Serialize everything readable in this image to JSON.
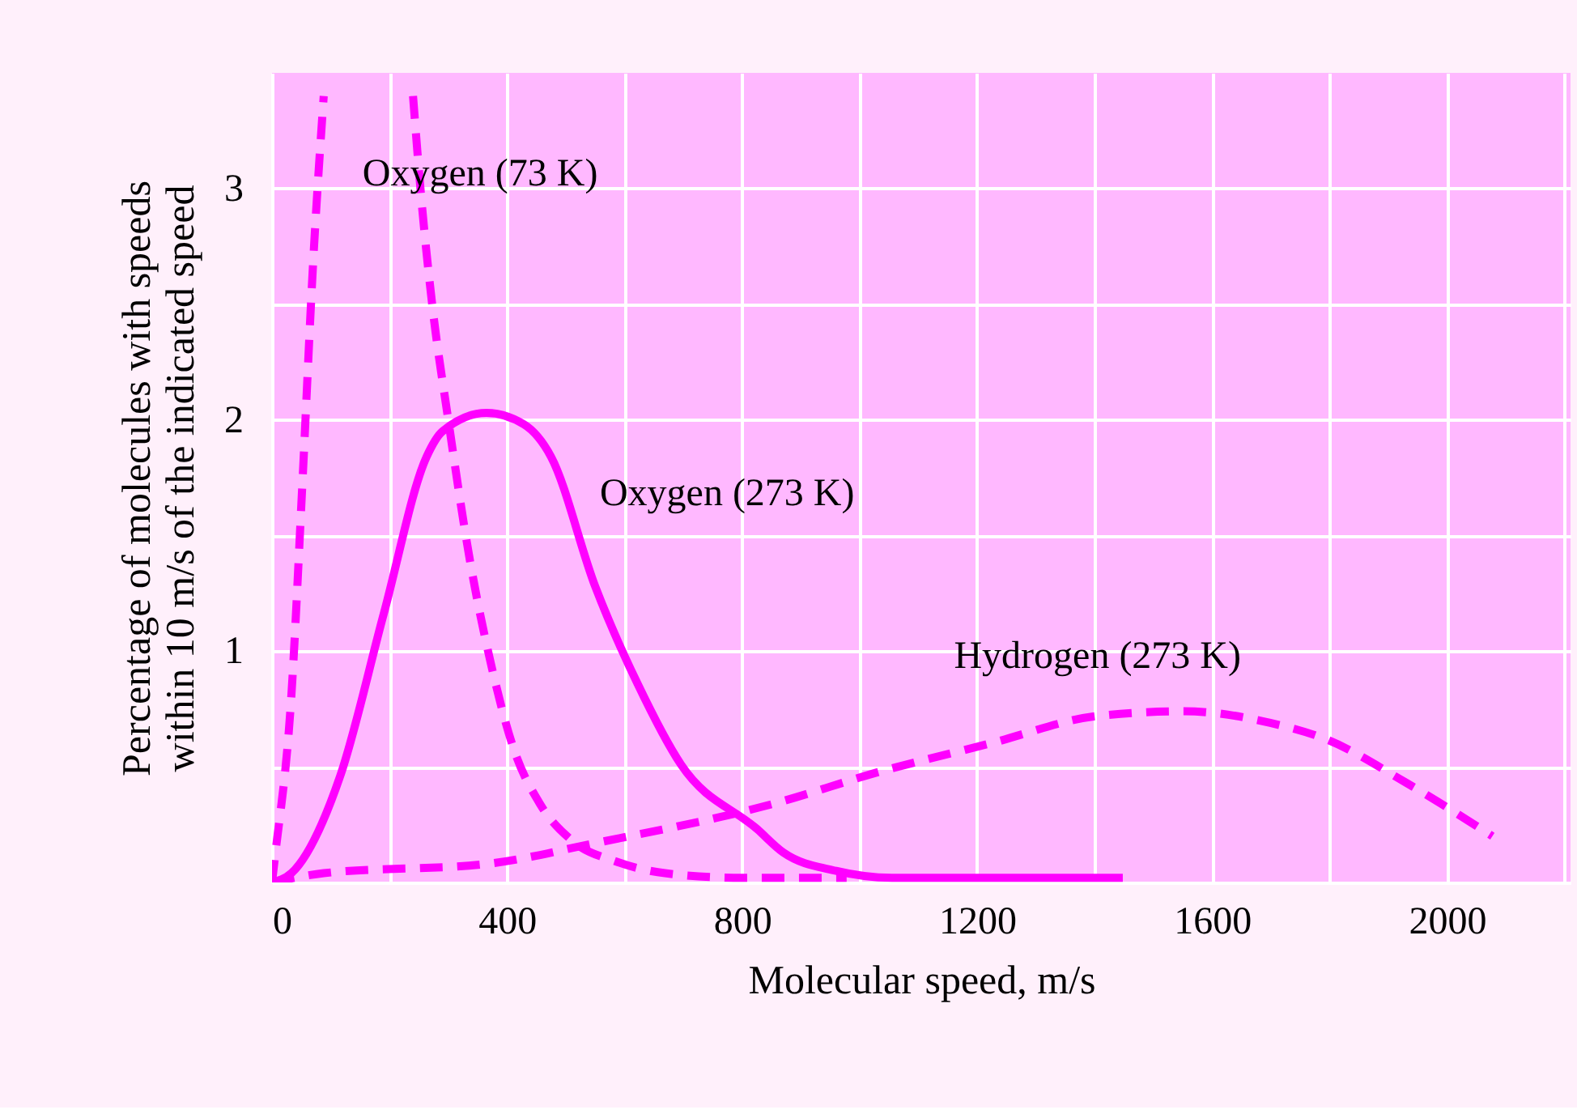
{
  "chart_data": {
    "type": "line",
    "xlabel": "Molecular speed, m/s",
    "ylabel": "Percentage of molecules with speeds\nwithin 10 m/s of the indicated speed",
    "xlim": [
      0,
      2210
    ],
    "ylim": [
      0,
      3.5
    ],
    "xticks": [
      0,
      {
        "value": 200,
        "label": null
      },
      400,
      {
        "value": 600,
        "label": null
      },
      800,
      {
        "value": 1000,
        "label": null
      },
      1200,
      {
        "value": 1400,
        "label": null
      },
      1600,
      {
        "value": 1800,
        "label": null
      },
      2000,
      {
        "value": 2200,
        "label": null
      }
    ],
    "yticks": [
      {
        "value": 0,
        "label": null
      },
      {
        "value": 0.5,
        "label": null
      },
      1,
      {
        "value": 1.5,
        "label": null
      },
      2,
      {
        "value": 2.5,
        "label": null
      },
      3
    ],
    "grid": true,
    "series": [
      {
        "name": "Oxygen (73 K)",
        "color": "#ff00ff",
        "line_style": "dashed",
        "x": [
          0,
          5,
          33,
          52,
          70,
          88,
          160,
          240,
          254,
          273,
          300,
          337,
          374,
          411,
          456,
          511,
          586,
          669,
          800,
          978
        ],
        "values": [
          0,
          0.11,
          0.81,
          1.74,
          2.68,
          3.4,
          null,
          3.4,
          2.96,
          2.49,
          2.0,
          1.39,
          0.93,
          0.58,
          0.34,
          0.18,
          0.09,
          0.04,
          0.02,
          0.02
        ]
      },
      {
        "name": "Oxygen (273 K)",
        "color": "#ff00ff",
        "line_style": "solid",
        "x": [
          0,
          33,
          116,
          190,
          263,
          290,
          365,
          429,
          475,
          550,
          622,
          696,
          826,
          870,
          960,
          1055,
          1448
        ],
        "values": [
          0,
          0.04,
          0.46,
          1.16,
          1.84,
          1.95,
          2.03,
          1.98,
          1.84,
          1.28,
          0.86,
          0.51,
          0.23,
          0.13,
          0.05,
          0.02,
          0.02
        ]
      },
      {
        "name": "Hydrogen (273 K)",
        "color": "#ff00ff",
        "line_style": "dashed",
        "x": [
          0,
          88,
          365,
          550,
          853,
          1036,
          1221,
          1406,
          1552,
          1699,
          1793,
          1931,
          2077
        ],
        "values": [
          0,
          0.04,
          0.08,
          0.17,
          0.34,
          0.48,
          0.6,
          0.72,
          0.74,
          0.69,
          0.62,
          0.43,
          0.2
        ]
      }
    ]
  }
}
